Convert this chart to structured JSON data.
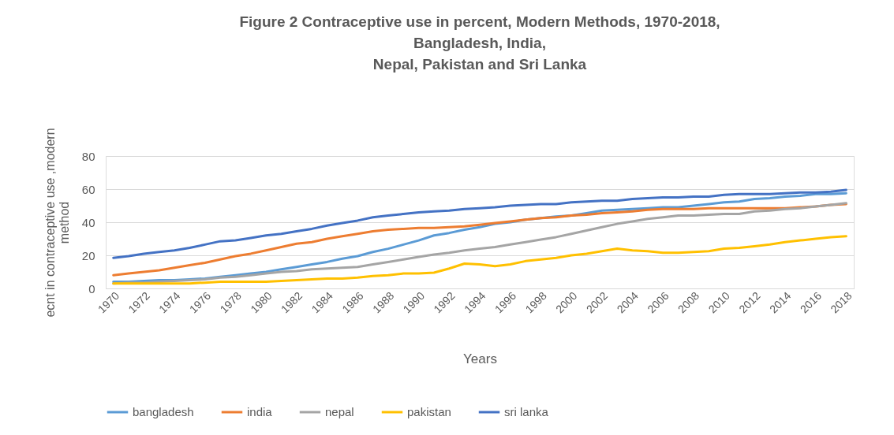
{
  "chart_data": {
    "type": "line",
    "title": "Figure 2   Contraceptive use in percent, Modern Methods, 1970-2018,\nBangladesh, India,\nNepal, Pakistan and Sri Lanka",
    "xlabel": "Years",
    "ylabel": "ecnt in contraceptive use ,modern method",
    "categories": [
      "1970",
      null,
      "1972",
      null,
      "1974",
      null,
      "1976",
      null,
      "1978",
      null,
      "1980",
      null,
      "1982",
      null,
      "1984",
      null,
      "1986",
      null,
      "1988",
      null,
      "1990",
      null,
      "1992",
      null,
      "1994",
      null,
      "1996",
      null,
      "1998",
      null,
      "2000",
      null,
      "2002",
      null,
      "2004",
      null,
      "2006",
      null,
      "2008",
      null,
      "2010",
      null,
      "2012",
      null,
      "2014",
      null,
      "2016",
      null,
      "2018"
    ],
    "series": [
      {
        "name": "bangladesh",
        "color": "#5b9bd5",
        "values": [
          4,
          4,
          4.5,
          5,
          5,
          5.5,
          6,
          7,
          8,
          9,
          10,
          11.5,
          13,
          14.5,
          16,
          18,
          19.5,
          22,
          24,
          26.5,
          29,
          32,
          33.5,
          35.5,
          37,
          39,
          40,
          41.5,
          42.5,
          43.5,
          44,
          45.5,
          47,
          47.5,
          48,
          48.5,
          49,
          49,
          50,
          51,
          52,
          52.5,
          54,
          54.5,
          55.5,
          56,
          57,
          57,
          57.5
        ]
      },
      {
        "name": "india",
        "color": "#ed7d31",
        "values": [
          8,
          9,
          10,
          11,
          12.5,
          14,
          15.5,
          17.5,
          19.5,
          21,
          23,
          25,
          27,
          28,
          30,
          31.5,
          33,
          34.5,
          35.5,
          36,
          36.5,
          36.5,
          37,
          37.5,
          38.5,
          39.5,
          40.5,
          41.5,
          42.5,
          43,
          44,
          44.5,
          45.5,
          46,
          46.5,
          47.5,
          48,
          48,
          48,
          48.5,
          48.5,
          48.5,
          48.5,
          48.5,
          48.5,
          49,
          49.5,
          50.5,
          51
        ]
      },
      {
        "name": "nepal",
        "color": "#a5a5a5",
        "values": [
          3,
          3.5,
          3.5,
          4,
          4.5,
          5,
          5.5,
          6.5,
          7,
          8,
          9,
          10,
          10.5,
          11.5,
          12,
          12.5,
          13,
          14.5,
          16,
          17.5,
          19,
          20.5,
          21.5,
          23,
          24,
          25,
          26.5,
          28,
          29.5,
          31,
          33,
          35,
          37,
          39,
          40.5,
          42,
          43,
          44,
          44,
          44.5,
          45,
          45,
          46.5,
          47,
          48,
          48.5,
          49.5,
          50.5,
          51.5
        ]
      },
      {
        "name": "pakistan",
        "color": "#ffc000",
        "values": [
          3,
          3,
          3,
          3,
          3,
          3,
          3.5,
          4,
          4,
          4,
          4,
          4.5,
          5,
          5.5,
          6,
          6,
          6.5,
          7.5,
          8,
          9,
          9,
          9.5,
          12,
          15,
          14.5,
          13.5,
          14.5,
          16.5,
          17.5,
          18.5,
          20,
          21,
          22.5,
          24,
          23,
          22.5,
          21.5,
          21.5,
          22,
          22.5,
          24,
          24.5,
          25.5,
          26.5,
          28,
          29,
          30,
          31,
          31.5
        ]
      },
      {
        "name": "sri lanka",
        "color": "#4472c4",
        "values": [
          18.5,
          19.5,
          21,
          22,
          23,
          24.5,
          26.5,
          28.5,
          29,
          30.5,
          32,
          33,
          34.5,
          36,
          38,
          39.5,
          41,
          43,
          44,
          45,
          46,
          46.5,
          47,
          48,
          48.5,
          49,
          50,
          50.5,
          51,
          51,
          52,
          52.5,
          53,
          53,
          54,
          54.5,
          55,
          55,
          55.5,
          55.5,
          56.5,
          57,
          57,
          57,
          57.5,
          58,
          58,
          58.5,
          59.5
        ]
      }
    ],
    "ylim": [
      0,
      80
    ],
    "yticks": [
      0,
      20,
      40,
      60,
      80
    ],
    "grid": "y",
    "legend": "bottom"
  }
}
